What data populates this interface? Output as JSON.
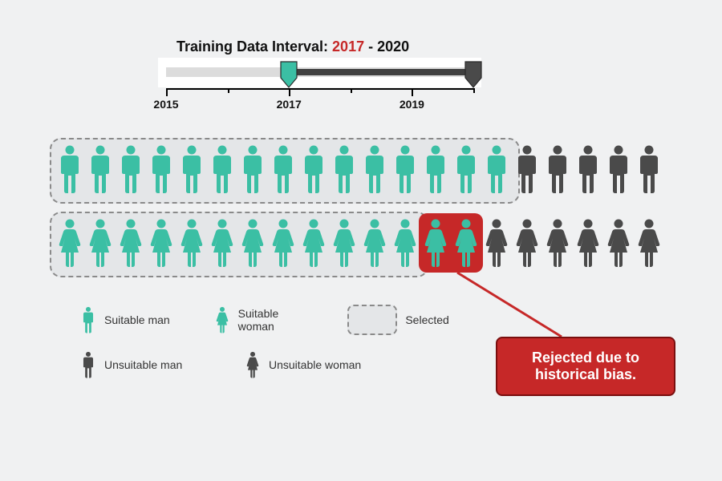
{
  "colors": {
    "background": "#f0f1f2",
    "suitable": "#3bbfa4",
    "unsuitable": "#4a4a4a",
    "track": "#dcdcdc",
    "trackInner": "#ffffff",
    "fill": "#404040",
    "handleStart": "#3bbfa4",
    "handleEnd": "#4a4a4a",
    "axis": "#000000",
    "selBorder": "#8a8a8a",
    "selFill": "#e4e6e8",
    "rejected": "#c62828",
    "calloutBorder": "#7a0f0f",
    "text": "#111111",
    "legendText": "#333333"
  },
  "slider": {
    "titlePrefix": "Training Data Interval: ",
    "fromYear": "2017",
    "sep": " - ",
    "toYear": "2020",
    "axis": {
      "min": 2015,
      "max": 2020,
      "majorEvery": 2,
      "labels": [
        "2015",
        "2017",
        "2019"
      ]
    },
    "startYear": 2017,
    "endYear": 2020,
    "trackLeft": 207,
    "trackWidth": 383
  },
  "rows": {
    "total": 20,
    "spacing": 38,
    "men": {
      "suitable": 15,
      "selected": 15
    },
    "women": {
      "suitable": 14,
      "selected": 12
    }
  },
  "rejected": {
    "startIndex": 12,
    "count": 2,
    "callout": "Rejected due to historical bias."
  },
  "legend": {
    "suitableMan": "Suitable man",
    "suitableWoman": "Suitable woman",
    "unsuitableMan": "Unsuitable man",
    "unsuitableWoman": "Unsuitable woman",
    "selected": "Selected"
  },
  "layout": {
    "rowLeft": 70,
    "menTop": 180,
    "womenTop": 272,
    "personW": 34,
    "personH": 62
  }
}
